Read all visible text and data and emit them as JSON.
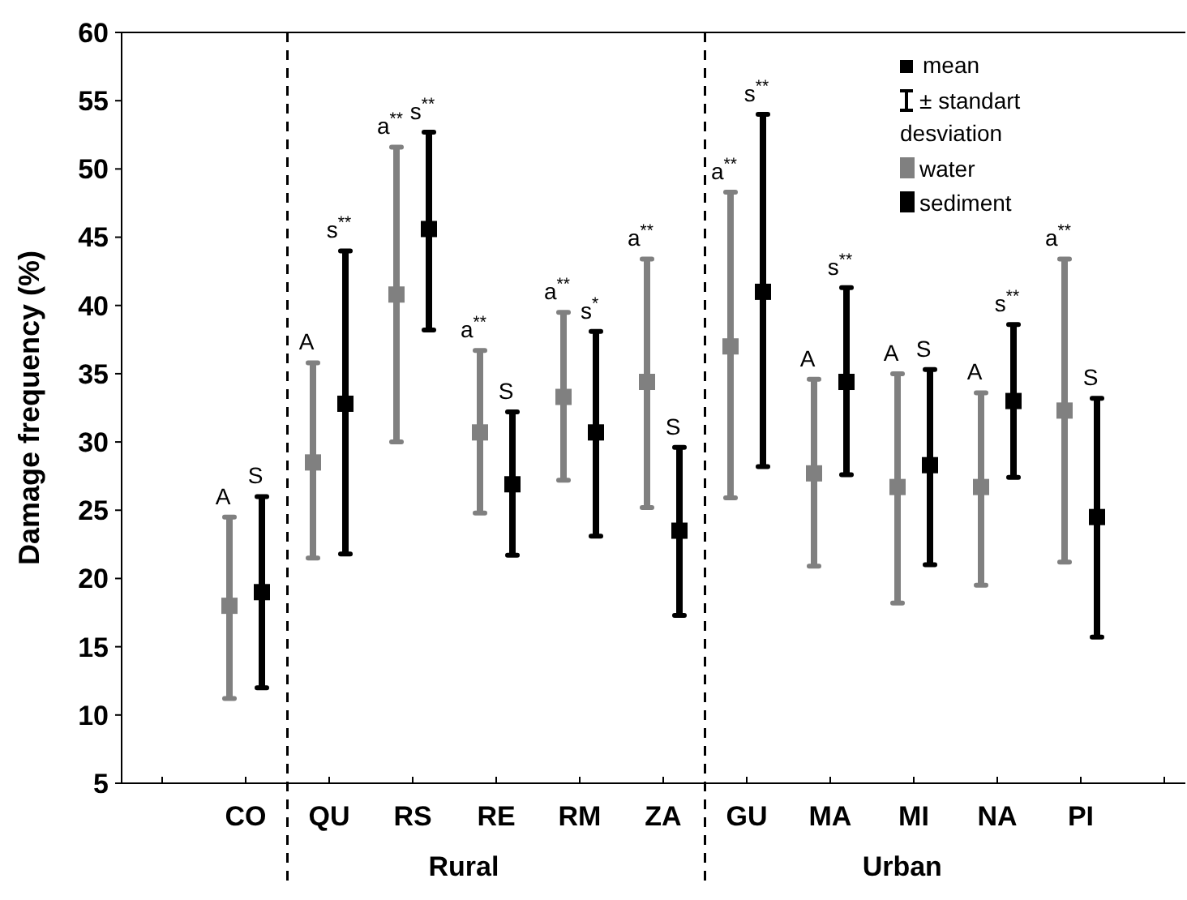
{
  "chart_data": {
    "type": "scatter",
    "ylabel": "Damage frequency (%)",
    "categories": [
      null,
      "CO",
      "QU",
      "RS",
      "RE",
      "RM",
      "ZA",
      "GU",
      "MA",
      "MI",
      "NA",
      "PI",
      null
    ],
    "ylim": [
      5,
      60
    ],
    "yticks": [
      5,
      10,
      15,
      20,
      25,
      30,
      35,
      40,
      45,
      50,
      55,
      60
    ],
    "marker": "square",
    "legend": "top right",
    "grid": false,
    "series": [
      {
        "name": "water",
        "color": "#808080",
        "values": [
          null,
          18,
          28.5,
          40.8,
          30.7,
          33.3,
          34.4,
          37,
          27.7,
          26.7,
          26.7,
          32.3,
          null
        ],
        "errors": [
          null,
          [
            11.2,
            24.5
          ],
          [
            21.5,
            35.8
          ],
          [
            30,
            51.6
          ],
          [
            24.8,
            36.7
          ],
          [
            27.2,
            39.5
          ],
          [
            25.2,
            43.4
          ],
          [
            25.9,
            48.3
          ],
          [
            20.9,
            34.6
          ],
          [
            18.2,
            35
          ],
          [
            19.5,
            33.6
          ],
          [
            21.2,
            43.4
          ],
          null
        ]
      },
      {
        "name": "sediment",
        "color": "#000000",
        "values": [
          null,
          19,
          32.8,
          45.6,
          26.9,
          30.7,
          23.5,
          41,
          34.4,
          28.3,
          33,
          24.5,
          null
        ],
        "errors": [
          null,
          [
            12,
            26
          ],
          [
            21.8,
            44
          ],
          [
            38.2,
            52.7
          ],
          [
            21.7,
            32.2
          ],
          [
            23.1,
            38.1
          ],
          [
            17.3,
            29.6
          ],
          [
            28.2,
            54
          ],
          [
            27.6,
            41.3
          ],
          [
            21,
            35.3
          ],
          [
            27.4,
            38.6
          ],
          [
            15.7,
            33.2
          ],
          null
        ]
      }
    ],
    "annotations": [
      "Rural",
      "Urban",
      "mean",
      "± standart desviation",
      "A",
      "S",
      "A",
      "s$^{**}$",
      "a$^{**}$",
      "s$^{**}$",
      "a$^{**}$",
      "S",
      "a$^{**}$",
      "s$^{*}$",
      "a$^{**}$",
      "S",
      "a$^{**}$",
      "s$^{**}$",
      "A",
      "s$^{**}$",
      "A",
      "S",
      "A",
      "s$^{**}$",
      "a$^{**}$",
      "S"
    ]
  }
}
